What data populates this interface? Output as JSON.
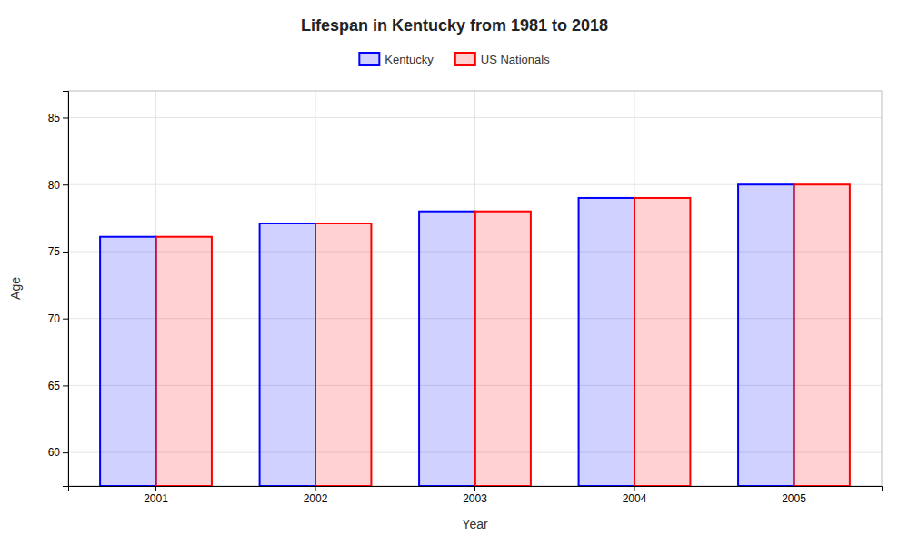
{
  "chart_data": {
    "type": "bar",
    "title": "Lifespan in Kentucky from 1981 to 2018",
    "x_label": "Year",
    "y_label": "Age",
    "categories": [
      "2001",
      "2002",
      "2003",
      "2004",
      "2005"
    ],
    "series": [
      {
        "name": "Kentucky",
        "color": "#0000FF",
        "values": [
          76.1,
          77.1,
          78.0,
          79.0,
          80.0
        ]
      },
      {
        "name": "US Nationals",
        "color": "#FF0000",
        "values": [
          76.1,
          77.1,
          78.0,
          79.0,
          80.0
        ]
      }
    ],
    "ylim": [
      57.5,
      87
    ],
    "yticks": [
      60,
      65,
      70,
      75,
      80,
      85
    ],
    "grid": true,
    "legend": "top"
  }
}
